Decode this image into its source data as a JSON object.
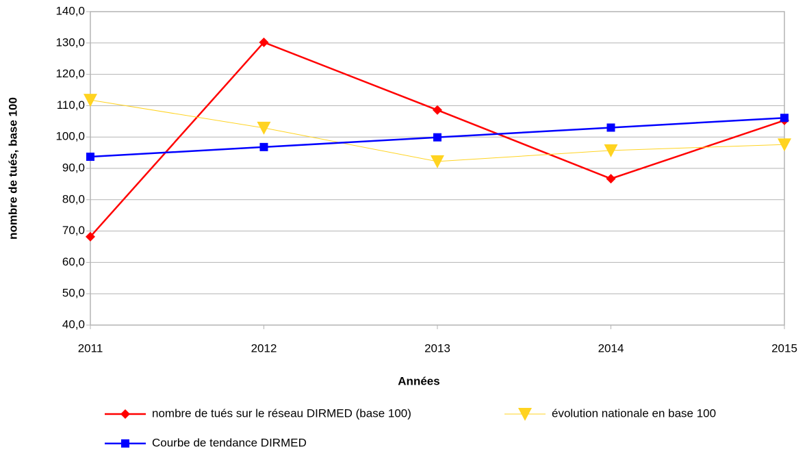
{
  "chart_data": {
    "type": "line",
    "xlabel": "Années",
    "ylabel": "nombre de tués, base 100",
    "x": [
      2011,
      2012,
      2013,
      2014,
      2015
    ],
    "xlim": [
      2011,
      2015
    ],
    "xticks": [
      2011,
      2012,
      2013,
      2014,
      2015
    ],
    "ylim": [
      40,
      140
    ],
    "yticks": [
      {
        "value": 40,
        "label": "40,0"
      },
      {
        "value": 50,
        "label": "50,0"
      },
      {
        "value": 60,
        "label": "60,0"
      },
      {
        "value": 70,
        "label": "70,0"
      },
      {
        "value": 80,
        "label": "80,0"
      },
      {
        "value": 90,
        "label": "90,0"
      },
      {
        "value": 100,
        "label": "100,0"
      },
      {
        "value": 110,
        "label": "110,0"
      },
      {
        "value": 120,
        "label": "120,0"
      },
      {
        "value": 130,
        "label": "130,0"
      },
      {
        "value": 140,
        "label": "140,0"
      }
    ],
    "grid": true,
    "legend": "bottom",
    "series": [
      {
        "name": "nombre de tués sur le réseau DIRMED (base 100)",
        "color": "#ff0000",
        "marker": "diamond",
        "values": [
          68.2,
          130.2,
          108.6,
          86.7,
          105.3
        ]
      },
      {
        "name": "évolution nationale en base 100",
        "color": "#ffd320",
        "marker": "triangle-down",
        "values": [
          111.8,
          102.9,
          92.2,
          95.7,
          97.6
        ]
      },
      {
        "name": "Courbe de tendance DIRMED",
        "color": "#0000ff",
        "marker": "square",
        "values": [
          93.7,
          96.8,
          99.9,
          103.0,
          106.1
        ]
      }
    ]
  }
}
